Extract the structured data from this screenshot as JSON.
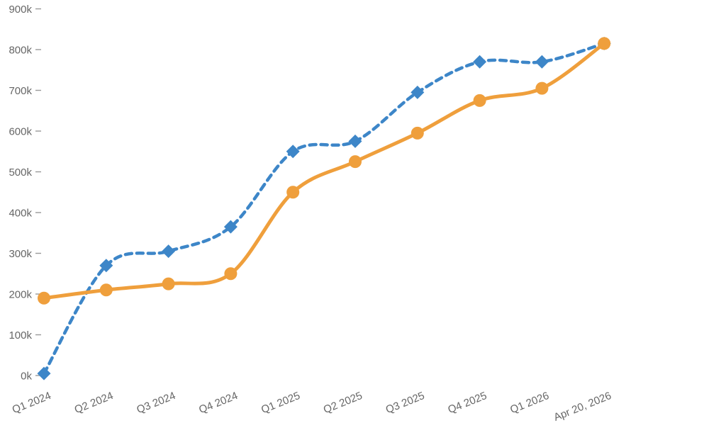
{
  "chart_data": {
    "type": "line",
    "title": "",
    "xlabel": "",
    "ylabel": "",
    "grid": false,
    "legend": "none",
    "background": "transparent",
    "axis_text_color": "#666666",
    "tick_color": "#9a9a9a",
    "ylim": [
      0,
      900000
    ],
    "categories": [
      "Q1 2024",
      "Q2 2024",
      "Q3 2024",
      "Q4 2024",
      "Q1 2025",
      "Q2 2025",
      "Q3 2025",
      "Q4 2025",
      "Q1 2026",
      "Apr 20, 2026"
    ],
    "y_ticks": [
      {
        "value": 0,
        "label": "0k"
      },
      {
        "value": 100000,
        "label": "100k"
      },
      {
        "value": 200000,
        "label": "200k"
      },
      {
        "value": 300000,
        "label": "300k"
      },
      {
        "value": 400000,
        "label": "400k"
      },
      {
        "value": 500000,
        "label": "500k"
      },
      {
        "value": 600000,
        "label": "600k"
      },
      {
        "value": 700000,
        "label": "700k"
      },
      {
        "value": 800000,
        "label": "800k"
      },
      {
        "value": 900000,
        "label": "900k"
      }
    ],
    "series": [
      {
        "name": "blue-dashed-series",
        "color": "#3D86C8",
        "line_style": "dashed",
        "marker": "diamond",
        "values": [
          5000,
          270000,
          305000,
          365000,
          550000,
          575000,
          695000,
          770000,
          770000,
          815000
        ]
      },
      {
        "name": "orange-solid-series",
        "color": "#EF9F3C",
        "line_style": "solid",
        "marker": "circle",
        "values": [
          190000,
          210000,
          225000,
          250000,
          450000,
          525000,
          595000,
          675000,
          705000,
          815000
        ]
      }
    ]
  }
}
